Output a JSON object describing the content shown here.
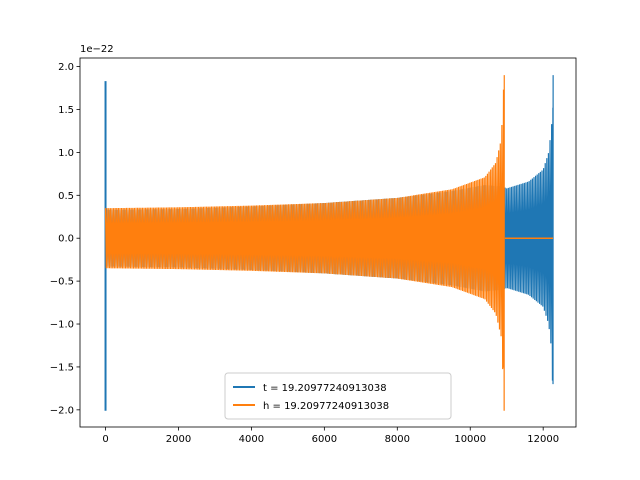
{
  "chart_data": {
    "type": "line",
    "title": "",
    "xlabel": "",
    "ylabel": "",
    "y_offset_label": "1e−22",
    "xlim": [
      -700,
      12900
    ],
    "ylim": [
      -2.2,
      2.1
    ],
    "x_ticks": [
      0,
      2000,
      4000,
      6000,
      8000,
      10000,
      12000
    ],
    "x_tick_labels": [
      "0",
      "2000",
      "4000",
      "6000",
      "8000",
      "10000",
      "12000"
    ],
    "y_ticks": [
      -2.0,
      -1.5,
      -1.0,
      -0.5,
      0.0,
      0.5,
      1.0,
      1.5,
      2.0
    ],
    "y_tick_labels": [
      "−2.0",
      "−1.5",
      "−1.0",
      "−0.5",
      "0.0",
      "0.5",
      "1.0",
      "1.5",
      "2.0"
    ],
    "grid": false,
    "legend_position": "bottom-center",
    "series": [
      {
        "name": "t = 19.20977240913038",
        "color": "#1f77b4",
        "x_range": [
          0,
          12270
        ],
        "spike_start": {
          "x": 0,
          "max": 1.83,
          "min": -2.01
        },
        "envelope": [
          [
            0,
            0.33
          ],
          [
            2000,
            0.34
          ],
          [
            4000,
            0.37
          ],
          [
            6000,
            0.41
          ],
          [
            8000,
            0.47
          ],
          [
            9500,
            0.55
          ],
          [
            10400,
            0.62
          ],
          [
            10900,
            0.6
          ],
          [
            11000,
            0.58
          ],
          [
            11600,
            0.66
          ],
          [
            12000,
            0.8
          ],
          [
            12150,
            1.0
          ],
          [
            12230,
            1.3
          ],
          [
            12270,
            1.9
          ]
        ],
        "envelope_min_end": -1.7
      },
      {
        "name": "h = 19.20977240913038",
        "color": "#ff7f0e",
        "x_range": [
          0,
          12270
        ],
        "envelope": [
          [
            0,
            0.35
          ],
          [
            2000,
            0.36
          ],
          [
            4000,
            0.38
          ],
          [
            6000,
            0.41
          ],
          [
            8000,
            0.47
          ],
          [
            9500,
            0.57
          ],
          [
            10400,
            0.71
          ],
          [
            10700,
            0.88
          ],
          [
            10850,
            1.15
          ],
          [
            10930,
            1.9
          ]
        ],
        "envelope_min_end": -2.01,
        "flat_after": {
          "x_from": 10950,
          "x_to": 12270,
          "value": 0.0
        }
      }
    ]
  }
}
